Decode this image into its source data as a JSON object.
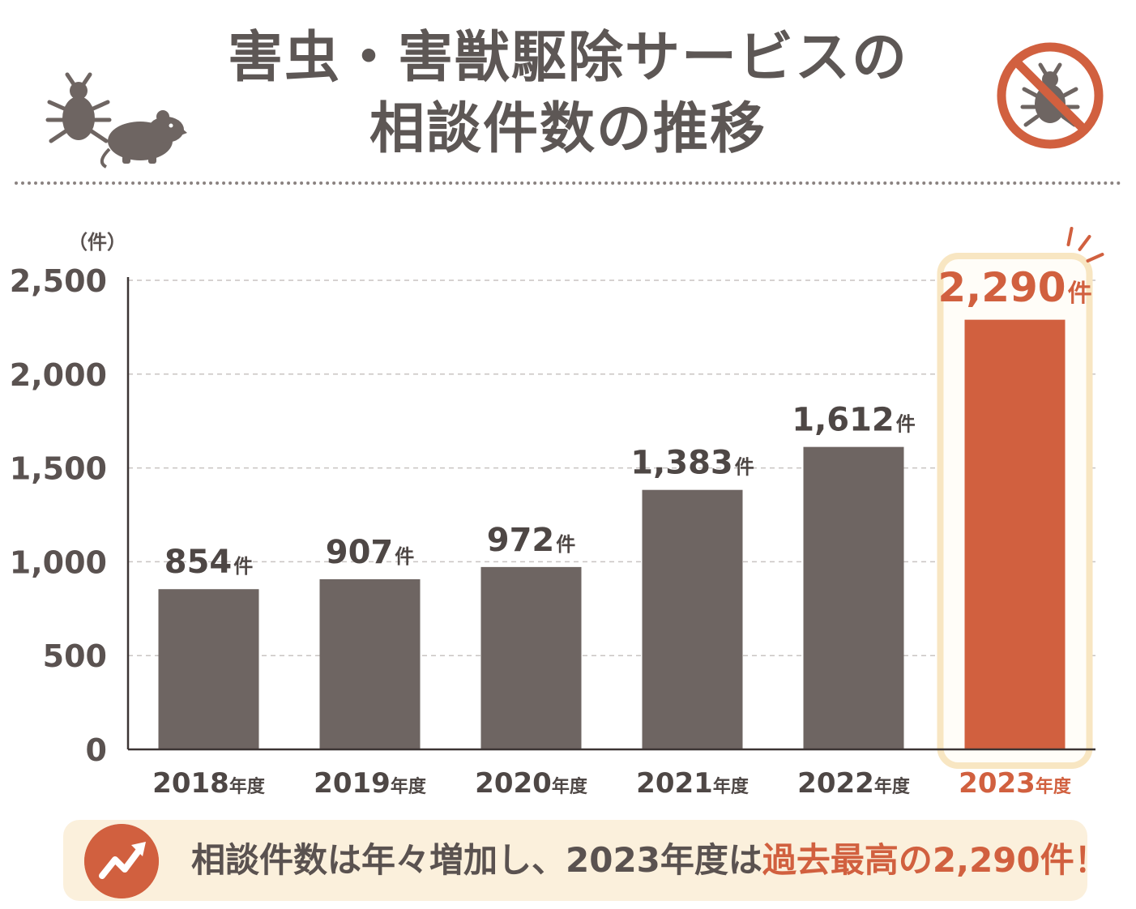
{
  "title": {
    "line1": "害虫・害獣駆除サービスの",
    "line2": "相談件数の推移"
  },
  "icons": {
    "left": [
      "bug-icon",
      "rat-icon"
    ],
    "right": "no-bug-icon",
    "summary": "trend-up-icon"
  },
  "colors": {
    "bar": "#6e6562",
    "highlight": "#d1603f",
    "highlight_frame": "#f8e6c2",
    "text": "#5a5250"
  },
  "chart_data": {
    "type": "bar",
    "unit_label": "（件）",
    "categories": [
      "2018年度",
      "2019年度",
      "2020年度",
      "2021年度",
      "2022年度",
      "2023年度"
    ],
    "values": [
      854,
      907,
      972,
      1383,
      1612,
      2290
    ],
    "value_labels": [
      "854",
      "907",
      "972",
      "1,383",
      "1,612",
      "2,290"
    ],
    "value_suffix": "件",
    "highlight_index": 5,
    "ylim": [
      0,
      2500
    ],
    "yticks": [
      0,
      500,
      1000,
      1500,
      2000,
      2500
    ],
    "ytick_labels": [
      "0",
      "500",
      "1,000",
      "1,500",
      "2,000",
      "2,500"
    ],
    "grid": true
  },
  "summary": {
    "text_normal": "相談件数は年々増加し、2023年度は",
    "text_accent": "過去最高の2,290件！"
  }
}
